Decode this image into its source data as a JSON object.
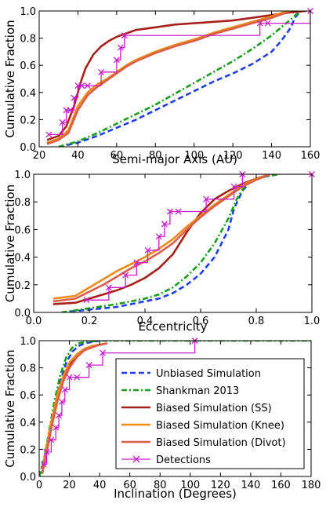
{
  "colors": {
    "unbiased": "#1f3fe8",
    "shankman": "#1a9e1a",
    "ss": "#a8201a",
    "knee": "#f08a14",
    "divot": "#d95f4a",
    "detections": "#c81ec8"
  },
  "legend": {
    "unbiased": "Unbiased Simulation",
    "shankman": "Shankman 2013",
    "ss": "Biased Simulation (SS)",
    "knee": "Biased Simulation (Knee)",
    "divot": "Biased Simulation (Divot)",
    "detections": "Detections"
  },
  "chart_data": [
    {
      "type": "line",
      "xlabel": "Semi-major Axis (AU)",
      "ylabel": "Cumulative Fraction",
      "xlim": [
        20,
        160
      ],
      "ylim": [
        0,
        1.0
      ],
      "xticks": [
        "20",
        "40",
        "60",
        "80",
        "100",
        "120",
        "140",
        "160"
      ],
      "yticks": [
        "0.0",
        "0.2",
        "0.4",
        "0.6",
        "0.8",
        "1.0"
      ],
      "series": [
        {
          "key": "unbiased",
          "style": "dashed",
          "x": [
            30,
            40,
            50,
            60,
            70,
            80,
            90,
            100,
            110,
            120,
            130,
            140,
            145,
            150,
            152,
            155
          ],
          "y": [
            0.0,
            0.03,
            0.08,
            0.14,
            0.2,
            0.27,
            0.34,
            0.41,
            0.48,
            0.54,
            0.61,
            0.7,
            0.78,
            0.88,
            0.95,
            1.0
          ]
        },
        {
          "key": "shankman",
          "style": "dashdot",
          "x": [
            30,
            40,
            50,
            60,
            70,
            80,
            90,
            100,
            110,
            120,
            130,
            140,
            150,
            155
          ],
          "y": [
            0.0,
            0.04,
            0.1,
            0.17,
            0.24,
            0.31,
            0.39,
            0.47,
            0.55,
            0.63,
            0.72,
            0.82,
            0.94,
            1.0
          ]
        },
        {
          "key": "ss",
          "style": "solid",
          "x": [
            24,
            30,
            34,
            38,
            40,
            42,
            44,
            48,
            52,
            56,
            60,
            64,
            70,
            80,
            90,
            100,
            110,
            120,
            130,
            140,
            150,
            158
          ],
          "y": [
            0.05,
            0.08,
            0.15,
            0.3,
            0.4,
            0.5,
            0.58,
            0.68,
            0.74,
            0.78,
            0.81,
            0.83,
            0.86,
            0.88,
            0.9,
            0.91,
            0.92,
            0.93,
            0.95,
            0.97,
            0.99,
            1.0
          ]
        },
        {
          "key": "knee",
          "style": "solid",
          "x": [
            24,
            30,
            35,
            40,
            45,
            50,
            55,
            60,
            65,
            70,
            80,
            90,
            100,
            110,
            120,
            130,
            140,
            148,
            150
          ],
          "y": [
            0.03,
            0.06,
            0.12,
            0.3,
            0.4,
            0.46,
            0.5,
            0.55,
            0.6,
            0.64,
            0.7,
            0.75,
            0.79,
            0.84,
            0.88,
            0.92,
            0.96,
            1.0,
            1.0
          ]
        },
        {
          "key": "divot",
          "style": "solid",
          "x": [
            24,
            30,
            35,
            40,
            45,
            50,
            55,
            60,
            65,
            70,
            80,
            90,
            100,
            110,
            120,
            130,
            140,
            148,
            150
          ],
          "y": [
            0.02,
            0.05,
            0.1,
            0.27,
            0.38,
            0.44,
            0.49,
            0.54,
            0.59,
            0.63,
            0.69,
            0.74,
            0.78,
            0.83,
            0.87,
            0.91,
            0.95,
            0.99,
            1.0
          ]
        },
        {
          "key": "detections",
          "style": "step",
          "x": [
            25,
            32,
            34,
            36,
            38,
            40,
            42,
            45,
            52,
            60,
            62,
            64,
            134,
            138,
            160
          ],
          "y": [
            0.09,
            0.18,
            0.27,
            0.27,
            0.36,
            0.45,
            0.45,
            0.45,
            0.55,
            0.64,
            0.73,
            0.82,
            0.91,
            0.91,
            1.0
          ]
        }
      ]
    },
    {
      "type": "line",
      "xlabel": "Eccentricity",
      "ylabel": "Cumulative Fraction",
      "xlim": [
        0.0,
        1.0
      ],
      "ylim": [
        0,
        1.0
      ],
      "xticks": [
        "0.0",
        "0.2",
        "0.4",
        "0.6",
        "0.8",
        "1.0"
      ],
      "yticks": [
        "0.0",
        "0.2",
        "0.4",
        "0.6",
        "0.8",
        "1.0"
      ],
      "series": [
        {
          "key": "unbiased",
          "style": "dashed",
          "x": [
            0.1,
            0.2,
            0.3,
            0.4,
            0.45,
            0.5,
            0.55,
            0.6,
            0.65,
            0.7,
            0.72,
            0.75,
            0.78,
            0.82,
            0.88
          ],
          "y": [
            0.0,
            0.02,
            0.04,
            0.08,
            0.1,
            0.14,
            0.2,
            0.28,
            0.4,
            0.6,
            0.75,
            0.88,
            0.95,
            0.98,
            1.0
          ]
        },
        {
          "key": "shankman",
          "style": "dashdot",
          "x": [
            0.1,
            0.2,
            0.3,
            0.4,
            0.45,
            0.5,
            0.55,
            0.6,
            0.65,
            0.7,
            0.73,
            0.76,
            0.8,
            0.88
          ],
          "y": [
            0.0,
            0.03,
            0.06,
            0.1,
            0.13,
            0.18,
            0.26,
            0.36,
            0.5,
            0.68,
            0.82,
            0.92,
            0.97,
            1.0
          ]
        },
        {
          "key": "ss",
          "style": "solid",
          "x": [
            0.07,
            0.15,
            0.2,
            0.25,
            0.3,
            0.35,
            0.4,
            0.45,
            0.5,
            0.55,
            0.6,
            0.65,
            0.7,
            0.75,
            0.8,
            0.85
          ],
          "y": [
            0.06,
            0.07,
            0.1,
            0.13,
            0.16,
            0.2,
            0.25,
            0.32,
            0.42,
            0.58,
            0.72,
            0.82,
            0.88,
            0.93,
            0.97,
            1.0
          ]
        },
        {
          "key": "knee",
          "style": "solid",
          "x": [
            0.07,
            0.15,
            0.2,
            0.25,
            0.3,
            0.35,
            0.4,
            0.45,
            0.5,
            0.55,
            0.6,
            0.65,
            0.7,
            0.75,
            0.8,
            0.85
          ],
          "y": [
            0.1,
            0.12,
            0.18,
            0.24,
            0.3,
            0.35,
            0.4,
            0.46,
            0.53,
            0.62,
            0.7,
            0.78,
            0.85,
            0.92,
            0.97,
            1.0
          ]
        },
        {
          "key": "divot",
          "style": "solid",
          "x": [
            0.07,
            0.15,
            0.2,
            0.25,
            0.3,
            0.35,
            0.4,
            0.45,
            0.5,
            0.55,
            0.6,
            0.65,
            0.7,
            0.75,
            0.8,
            0.85
          ],
          "y": [
            0.08,
            0.1,
            0.15,
            0.2,
            0.26,
            0.32,
            0.37,
            0.43,
            0.5,
            0.6,
            0.69,
            0.77,
            0.84,
            0.91,
            0.96,
            1.0
          ]
        },
        {
          "key": "detections",
          "style": "step",
          "x": [
            0.19,
            0.27,
            0.33,
            0.37,
            0.41,
            0.45,
            0.47,
            0.49,
            0.52,
            0.62,
            0.72,
            0.75,
            1.0
          ],
          "y": [
            0.09,
            0.18,
            0.27,
            0.36,
            0.45,
            0.55,
            0.64,
            0.73,
            0.73,
            0.82,
            0.91,
            1.0,
            1.0
          ]
        }
      ]
    },
    {
      "type": "line",
      "xlabel": "Inclination (Degrees)",
      "ylabel": "Cumulative Fraction",
      "xlim": [
        0,
        180
      ],
      "ylim": [
        0,
        1.0
      ],
      "xticks": [
        "0",
        "20",
        "40",
        "60",
        "80",
        "100",
        "120",
        "140",
        "160",
        "180"
      ],
      "yticks": [
        "0.0",
        "0.2",
        "0.4",
        "0.6",
        "0.8",
        "1.0"
      ],
      "series": [
        {
          "key": "unbiased",
          "style": "dashed",
          "x": [
            0,
            3,
            6,
            10,
            14,
            18,
            22,
            26,
            30,
            35,
            40,
            45
          ],
          "y": [
            0.0,
            0.1,
            0.28,
            0.5,
            0.7,
            0.84,
            0.92,
            0.96,
            0.98,
            0.99,
            1.0,
            1.0
          ]
        },
        {
          "key": "shankman",
          "style": "dashdot",
          "x": [
            0,
            3,
            6,
            10,
            14,
            18,
            22,
            26,
            30,
            40,
            60,
            100,
            180
          ],
          "y": [
            0.0,
            0.12,
            0.3,
            0.55,
            0.75,
            0.88,
            0.95,
            0.98,
            0.99,
            1.0,
            1.0,
            1.0,
            1.0
          ]
        },
        {
          "key": "ss",
          "style": "solid",
          "x": [
            2,
            5,
            8,
            12,
            16,
            20,
            25,
            30,
            35,
            40,
            45
          ],
          "y": [
            0.02,
            0.2,
            0.38,
            0.58,
            0.72,
            0.82,
            0.9,
            0.94,
            0.96,
            0.97,
            0.98
          ]
        },
        {
          "key": "knee",
          "style": "solid",
          "x": [
            2,
            5,
            8,
            12,
            16,
            20,
            25,
            30,
            35,
            40,
            45
          ],
          "y": [
            0.03,
            0.22,
            0.4,
            0.6,
            0.74,
            0.84,
            0.9,
            0.94,
            0.96,
            0.97,
            0.98
          ]
        },
        {
          "key": "divot",
          "style": "solid",
          "x": [
            2,
            5,
            8,
            12,
            16,
            20,
            25,
            30,
            35,
            40,
            45
          ],
          "y": [
            0.02,
            0.18,
            0.35,
            0.55,
            0.7,
            0.8,
            0.88,
            0.93,
            0.95,
            0.97,
            0.98
          ]
        },
        {
          "key": "detections",
          "style": "step",
          "x": [
            3,
            5,
            8,
            11,
            13,
            15,
            17,
            20,
            25,
            33,
            42,
            103
          ],
          "y": [
            0.09,
            0.18,
            0.27,
            0.36,
            0.45,
            0.55,
            0.64,
            0.73,
            0.73,
            0.82,
            0.91,
            1.0
          ]
        }
      ]
    }
  ]
}
